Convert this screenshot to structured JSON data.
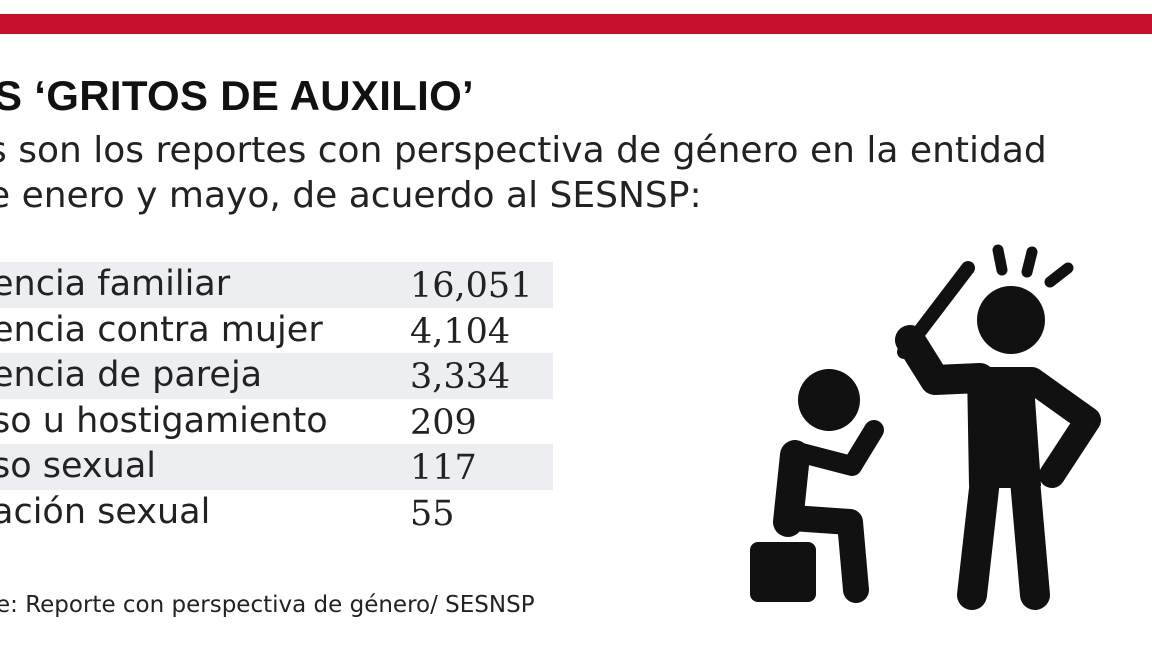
{
  "headline": "S ‘GRITOS DE AUXILIO’",
  "subtitle": {
    "line1": "s son los reportes con perspectiva de género en la entidad",
    "line2": "e enero y mayo, de acuerdo al SESNSP:"
  },
  "table": {
    "rows": [
      {
        "label": "encia familiar",
        "value": "16,051"
      },
      {
        "label": "encia contra mujer",
        "value": "4,104"
      },
      {
        "label": "encia de pareja",
        "value": "3,334"
      },
      {
        "label": "so u hostigamiento",
        "value": "209"
      },
      {
        "label": "so sexual",
        "value": "117"
      },
      {
        "label": "ación sexual",
        "value": "55"
      }
    ]
  },
  "source": "e: Reporte con perspectiva de género/ SESNSP",
  "illustration": {
    "icon": "domestic-violence-icon",
    "figures": [
      "standing-aggressor-with-stick",
      "seated-victim"
    ]
  },
  "colors": {
    "accent_bar": "#c8102e",
    "row_shade": "#eceef1",
    "text": "#222222"
  }
}
